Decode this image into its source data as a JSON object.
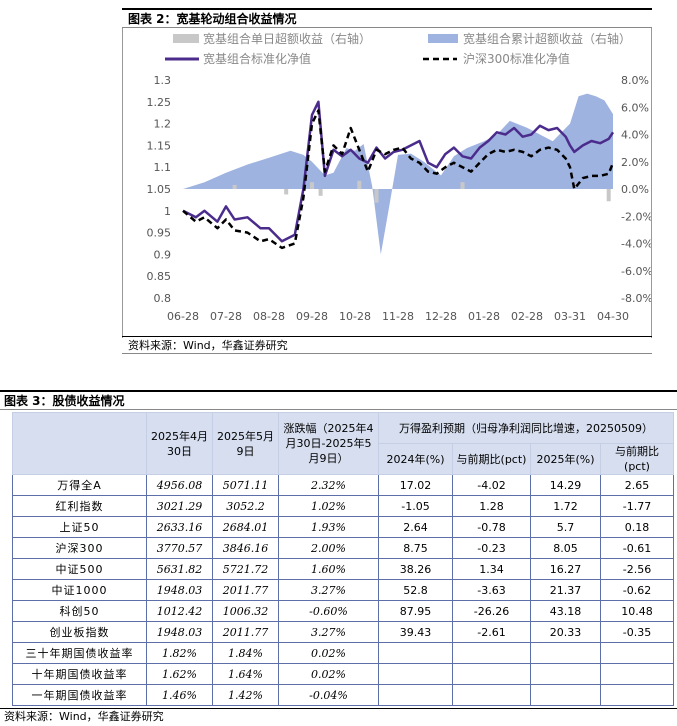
{
  "figure2": {
    "title": "图表 2：宽基轮动组合收益情况",
    "source": "资料来源：Wind，华鑫证券研究",
    "legend": {
      "daily_excess": "宽基组合单日超额收益（右轴）",
      "cum_excess": "宽基组合累计超额收益（右轴）",
      "portfolio_nav": "宽基组合标准化净值",
      "hs300_nav": "沪深300标准化净值"
    },
    "colors": {
      "portfolio": "#4b2c8c",
      "hs300": "#000000",
      "cum": "#9fb3e0",
      "daily": "#c8c8c8"
    },
    "chart_data": {
      "type": "line",
      "x_ticks": [
        "06-28",
        "07-28",
        "08-28",
        "09-28",
        "10-28",
        "11-28",
        "12-28",
        "01-28",
        "02-28",
        "03-31",
        "04-30"
      ],
      "left_ticks": [
        "1.3",
        "1.25",
        "1.2",
        "1.15",
        "1.1",
        "1.05",
        "1",
        "0.95",
        "0.9",
        "0.85",
        "0.8"
      ],
      "right_ticks": [
        "8.0%",
        "6.0%",
        "4.0%",
        "2.0%",
        "0.0%",
        "-2.0%",
        "-4.0%",
        "-6.0%",
        "-8.0%"
      ],
      "ylim_left": [
        0.8,
        1.3
      ],
      "ylim_right": [
        -8,
        8
      ],
      "x_index_range": [
        0,
        10
      ],
      "series": [
        {
          "name": "宽基组合标准化净值",
          "axis": "left",
          "style": "solid",
          "x": [
            0,
            0.3,
            0.5,
            0.8,
            1.0,
            1.2,
            1.5,
            1.8,
            2.0,
            2.3,
            2.6,
            2.8,
            3.0,
            3.15,
            3.3,
            3.5,
            3.7,
            3.9,
            4.1,
            4.3,
            4.5,
            4.7,
            4.9,
            5.1,
            5.3,
            5.5,
            5.7,
            5.9,
            6.1,
            6.3,
            6.5,
            6.7,
            6.9,
            7.1,
            7.3,
            7.5,
            7.7,
            7.9,
            8.1,
            8.3,
            8.5,
            8.7,
            8.9,
            9.0,
            9.1,
            9.3,
            9.5,
            9.7,
            9.9,
            10.0
          ],
          "y": [
            1.0,
            0.985,
            1.0,
            0.975,
            1.01,
            0.98,
            0.985,
            0.96,
            0.96,
            0.93,
            0.945,
            1.05,
            1.22,
            1.25,
            1.08,
            1.14,
            1.125,
            1.14,
            1.12,
            1.11,
            1.145,
            1.12,
            1.135,
            1.14,
            1.15,
            1.16,
            1.11,
            1.1,
            1.13,
            1.145,
            1.125,
            1.12,
            1.145,
            1.16,
            1.18,
            1.175,
            1.19,
            1.17,
            1.175,
            1.195,
            1.185,
            1.19,
            1.17,
            1.15,
            1.135,
            1.15,
            1.16,
            1.155,
            1.165,
            1.18
          ]
        },
        {
          "name": "沪深300标准化净值",
          "axis": "left",
          "style": "dashed",
          "x": [
            0,
            0.3,
            0.5,
            0.8,
            1.0,
            1.2,
            1.5,
            1.8,
            2.0,
            2.3,
            2.6,
            2.8,
            3.0,
            3.15,
            3.3,
            3.5,
            3.7,
            3.9,
            4.1,
            4.3,
            4.5,
            4.7,
            4.9,
            5.1,
            5.3,
            5.5,
            5.7,
            5.9,
            6.1,
            6.3,
            6.5,
            6.7,
            6.9,
            7.1,
            7.3,
            7.5,
            7.7,
            7.9,
            8.1,
            8.3,
            8.5,
            8.7,
            8.9,
            9.0,
            9.1,
            9.3,
            9.5,
            9.7,
            9.9,
            10.0
          ],
          "y": [
            1.0,
            0.975,
            0.985,
            0.96,
            0.98,
            0.955,
            0.95,
            0.93,
            0.935,
            0.915,
            0.925,
            1.03,
            1.2,
            1.23,
            1.09,
            1.15,
            1.13,
            1.19,
            1.14,
            1.09,
            1.14,
            1.13,
            1.14,
            1.145,
            1.12,
            1.11,
            1.09,
            1.085,
            1.1,
            1.11,
            1.1,
            1.09,
            1.11,
            1.13,
            1.14,
            1.135,
            1.14,
            1.135,
            1.125,
            1.14,
            1.145,
            1.14,
            1.12,
            1.1,
            1.05,
            1.075,
            1.08,
            1.08,
            1.085,
            1.11
          ]
        },
        {
          "name": "宽基组合累计超额收益（右轴）",
          "axis": "right",
          "style": "area",
          "x": [
            0,
            0.5,
            1.0,
            1.5,
            2.0,
            2.5,
            2.8,
            3.0,
            3.3,
            3.5,
            3.8,
            4.0,
            4.2,
            4.4,
            4.6,
            4.8,
            5.0,
            5.3,
            5.6,
            6.0,
            6.3,
            6.6,
            7.0,
            7.3,
            7.6,
            8.0,
            8.3,
            8.6,
            9.0,
            9.2,
            9.4,
            9.6,
            9.8,
            10.0
          ],
          "y": [
            0.0,
            0.5,
            1.2,
            1.8,
            2.3,
            2.8,
            2.5,
            2.0,
            1.0,
            1.2,
            3.0,
            2.8,
            3.3,
            0.2,
            -4.8,
            -1.2,
            2.5,
            2.6,
            2.0,
            1.0,
            2.4,
            3.0,
            3.5,
            4.0,
            5.0,
            4.5,
            4.0,
            3.5,
            4.8,
            6.8,
            7.0,
            6.8,
            6.5,
            5.5
          ]
        },
        {
          "name": "宽基组合单日超额收益（右轴）",
          "axis": "right",
          "style": "bar",
          "x": [
            1.2,
            2.4,
            3.0,
            3.2,
            4.1,
            4.5,
            6.5,
            9.9
          ],
          "y": [
            0.3,
            -0.4,
            0.5,
            -0.5,
            0.6,
            -1.0,
            0.5,
            -0.9
          ]
        }
      ]
    }
  },
  "figure3": {
    "title": "图表 3：股债收益情况",
    "source": "资料来源：Wind，华鑫证券研究",
    "headers": {
      "col1": "2025年4月30日",
      "col2": "2025年5月9日",
      "col3": "涨跌幅（2025年4月30日-2025年5月9日）",
      "group": "万得盈利预期（归母净利润同比增速，20250509）",
      "sub": [
        "2024年(%)",
        "与前期比(pct)",
        "2025年(%)",
        "与前期比(pct)"
      ]
    },
    "rows": [
      [
        "万得全A",
        "4956.08",
        "5071.11",
        "2.32%",
        "17.02",
        "-4.02",
        "14.29",
        "2.65"
      ],
      [
        "红利指数",
        "3021.29",
        "3052.2",
        "1.02%",
        "-1.05",
        "1.28",
        "1.72",
        "-1.77"
      ],
      [
        "上证50",
        "2633.16",
        "2684.01",
        "1.93%",
        "2.64",
        "-0.78",
        "5.7",
        "0.18"
      ],
      [
        "沪深300",
        "3770.57",
        "3846.16",
        "2.00%",
        "8.75",
        "-0.23",
        "8.05",
        "-0.61"
      ],
      [
        "中证500",
        "5631.82",
        "5721.72",
        "1.60%",
        "38.26",
        "1.34",
        "16.27",
        "-2.56"
      ],
      [
        "中证1000",
        "1948.03",
        "2011.77",
        "3.27%",
        "52.8",
        "-3.63",
        "21.37",
        "-0.62"
      ],
      [
        "科创50",
        "1012.42",
        "1006.32",
        "-0.60%",
        "87.95",
        "-26.26",
        "43.18",
        "10.48"
      ],
      [
        "创业板指数",
        "1948.03",
        "2011.77",
        "3.27%",
        "39.43",
        "-2.61",
        "20.33",
        "-0.35"
      ],
      [
        "三十年期国债收益率",
        "1.82%",
        "1.84%",
        "0.02%",
        "",
        "",
        "",
        ""
      ],
      [
        "十年期国债收益率",
        "1.62%",
        "1.64%",
        "0.02%",
        "",
        "",
        "",
        ""
      ],
      [
        "一年期国债收益率",
        "1.46%",
        "1.42%",
        "-0.04%",
        "",
        "",
        "",
        ""
      ]
    ]
  }
}
